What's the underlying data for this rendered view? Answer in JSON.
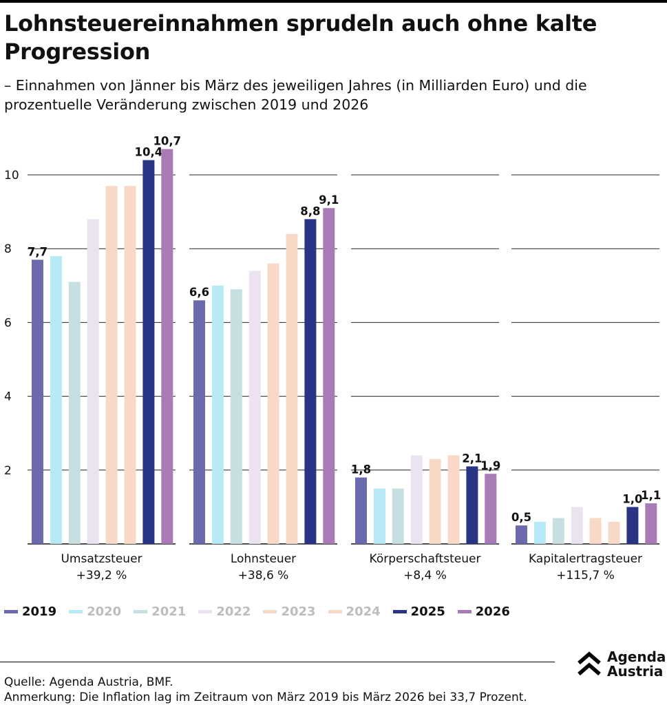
{
  "title": "Lohnsteuereinnahmen sprudeln auch ohne kalte Progression",
  "subtitle": "– Einnahmen von Jänner bis März des jeweiligen Jahres (in Milliarden Euro) und die prozentuelle Veränderung zwischen 2019 und 2026",
  "source": "Quelle: Agenda Austria, BMF.",
  "note": "Anmerkung: Die Inflation lag im Zeitraum von März 2019 bis März 2026 bei 33,7 Prozent.",
  "logo": {
    "line1": "Agenda",
    "line2": "Austria"
  },
  "chart_data": {
    "type": "bar",
    "ylim": [
      0,
      10.7
    ],
    "yticks": [
      "10",
      "8",
      "6",
      "4",
      "2"
    ],
    "ytick_values": [
      10,
      8,
      6,
      4,
      2
    ],
    "grid": true,
    "legend_position": "bottom-left",
    "series": [
      {
        "name": "2019",
        "color": "#6b6aad",
        "emphasis": true
      },
      {
        "name": "2020",
        "color": "#b8e9f7",
        "emphasis": false
      },
      {
        "name": "2021",
        "color": "#c8dfe2",
        "emphasis": false
      },
      {
        "name": "2022",
        "color": "#ebe3f0",
        "emphasis": false
      },
      {
        "name": "2023",
        "color": "#f8d9c8",
        "emphasis": false
      },
      {
        "name": "2024",
        "color": "#f8d9c8",
        "emphasis": false
      },
      {
        "name": "2025",
        "color": "#293584",
        "emphasis": true
      },
      {
        "name": "2026",
        "color": "#a87bb7",
        "emphasis": true
      }
    ],
    "groups": [
      {
        "name": "Umsatzsteuer",
        "change": "+39,2 %",
        "values": [
          7.7,
          7.8,
          7.1,
          8.8,
          9.7,
          9.7,
          10.4,
          10.7
        ],
        "labels": [
          "7,7",
          "",
          "",
          "",
          "",
          "",
          "10,4",
          "10,7"
        ]
      },
      {
        "name": "Lohnsteuer",
        "change": "+38,6 %",
        "values": [
          6.6,
          7.0,
          6.9,
          7.4,
          7.6,
          8.4,
          8.8,
          9.1
        ],
        "labels": [
          "6,6",
          "",
          "",
          "",
          "",
          "",
          "8,8",
          "9,1"
        ]
      },
      {
        "name": "Körperschaftsteuer",
        "change": "+8,4 %",
        "values": [
          1.8,
          1.5,
          1.5,
          2.4,
          2.3,
          2.4,
          2.1,
          1.9
        ],
        "labels": [
          "1,8",
          "",
          "",
          "",
          "",
          "",
          "2,1",
          "1,9"
        ]
      },
      {
        "name": "Kapitalertragsteuer",
        "change": "+115,7 %",
        "values": [
          0.5,
          0.6,
          0.7,
          1.0,
          0.7,
          0.6,
          1.0,
          1.1
        ],
        "labels": [
          "0,5",
          "",
          "",
          "",
          "",
          "",
          "1,0",
          "1,1"
        ]
      }
    ]
  }
}
